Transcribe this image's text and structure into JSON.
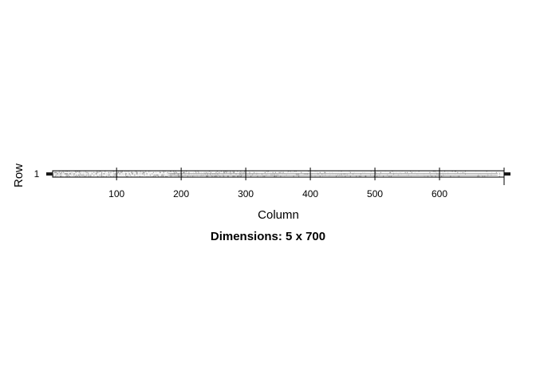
{
  "chart_data": {
    "type": "heatmap",
    "title": "",
    "caption": "Dimensions: 5 x 700",
    "xlabel": "Column",
    "ylabel": "Row",
    "rows": 5,
    "columns": 700,
    "x_ticks": [
      100,
      200,
      300,
      400,
      500,
      600
    ],
    "y_ticks": [
      1
    ],
    "xlim": [
      1,
      700
    ],
    "ylim": [
      1,
      5
    ],
    "legend": "none",
    "grid": false,
    "colors": {
      "background": "#ffffff",
      "frame": "#000000",
      "cell_light": "#cccccc",
      "cell_dark": "#555555",
      "edge_bar": "#1a1a1a"
    }
  }
}
